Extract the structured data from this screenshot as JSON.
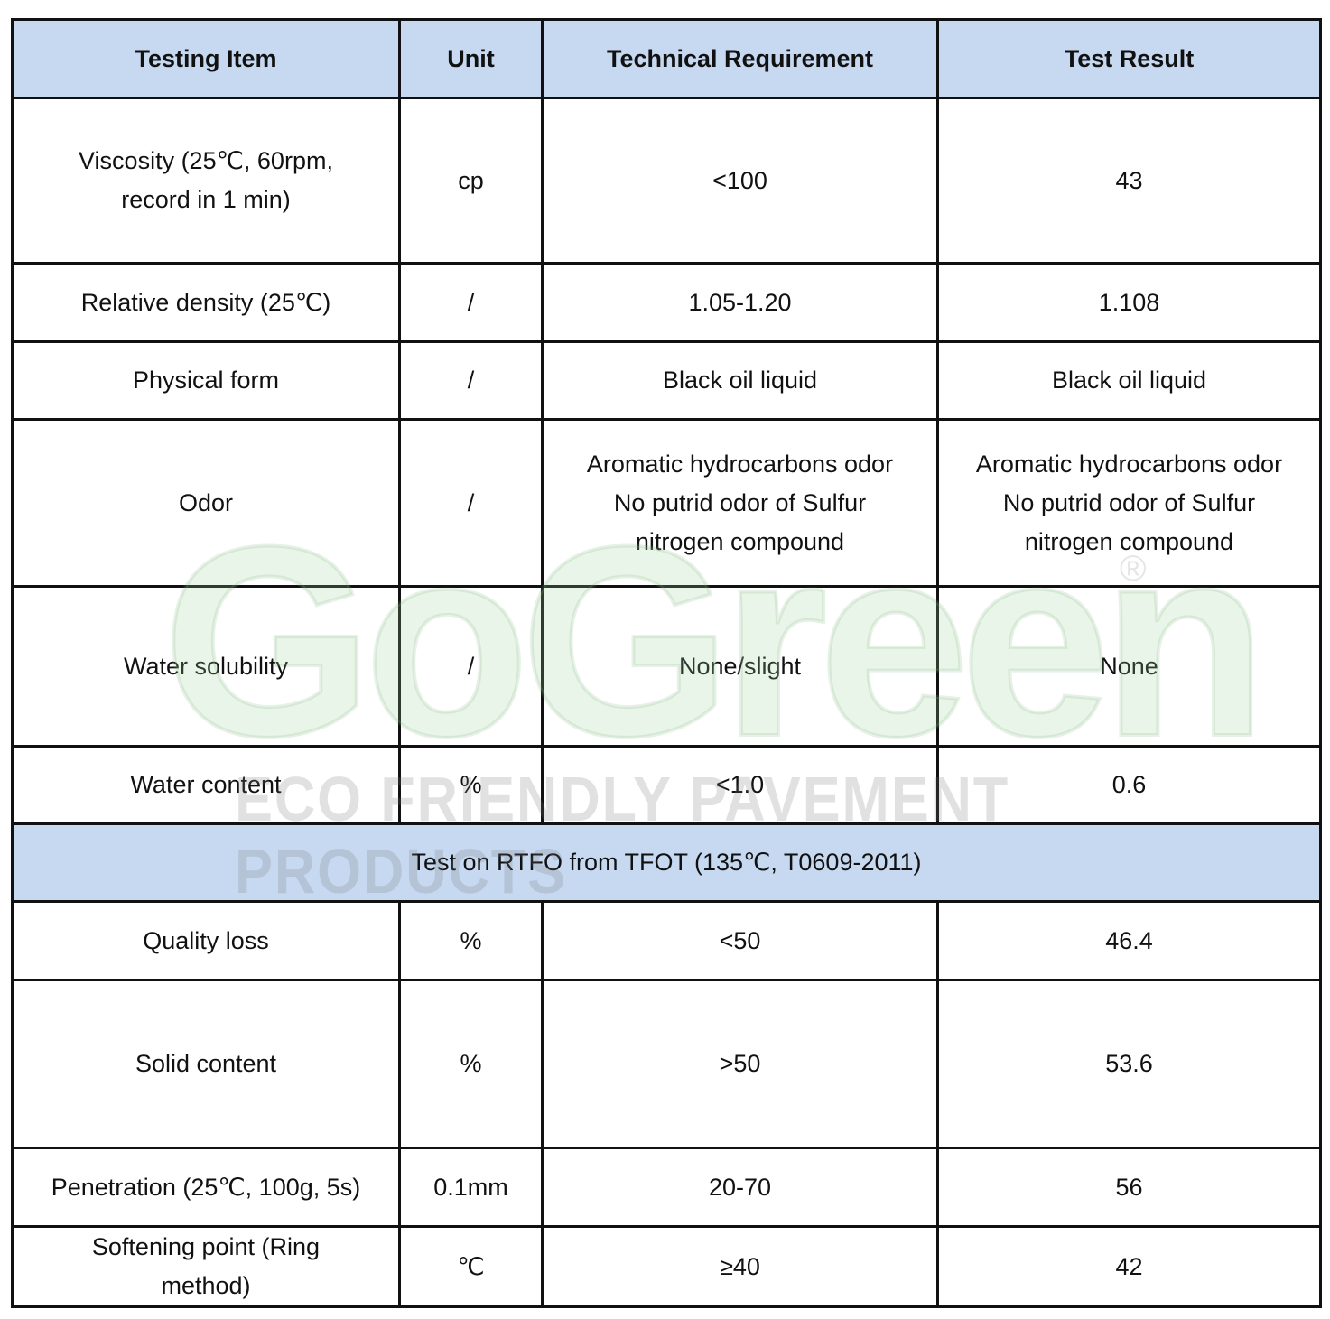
{
  "headers": [
    "Testing Item",
    "Unit",
    "Technical Requirement",
    "Test Result"
  ],
  "rows": [
    {
      "item": "Viscosity (25℃, 60rpm,",
      "item2": "record in 1 min)",
      "unit": "cp",
      "req": "<100",
      "result": "43"
    },
    {
      "item": "Relative density (25℃)",
      "unit": "/",
      "req": "1.05-1.20",
      "result": "1.108"
    },
    {
      "item": "Physical form",
      "unit": "/",
      "req": "Black oil liquid",
      "result": "Black oil liquid"
    },
    {
      "item": "Odor",
      "unit": "/",
      "req": "Aromatic hydrocarbons odor",
      "req2": "No putrid odor of Sulfur",
      "req3": "nitrogen compound",
      "result": "Aromatic hydrocarbons odor",
      "result2": "No putrid odor of Sulfur",
      "result3": "nitrogen compound"
    },
    {
      "item": "Water solubility",
      "unit": "/",
      "req": "None/slight",
      "result": "None"
    },
    {
      "item": "Water content",
      "unit": "%",
      "req": "<1.0",
      "result": "0.6"
    }
  ],
  "section": "Test on RTFO from TFOT (135℃, T0609-2011)",
  "rows2": [
    {
      "item": "Quality loss",
      "unit": "%",
      "req": "<50",
      "result": "46.4"
    },
    {
      "item": "Solid content",
      "unit": "%",
      "req": ">50",
      "result": "53.6"
    },
    {
      "item": "Penetration (25℃, 100g, 5s)",
      "unit": "0.1mm",
      "req": "20-70",
      "result": "56"
    },
    {
      "item": "Softening point (Ring",
      "item2": "method)",
      "unit": "℃",
      "req": "≥40",
      "result": "42"
    }
  ],
  "watermark": {
    "logo": "GoGreen",
    "registered": "®",
    "tagline": "ECO FRIENDLY PAVEMENT PRODUCTS"
  }
}
